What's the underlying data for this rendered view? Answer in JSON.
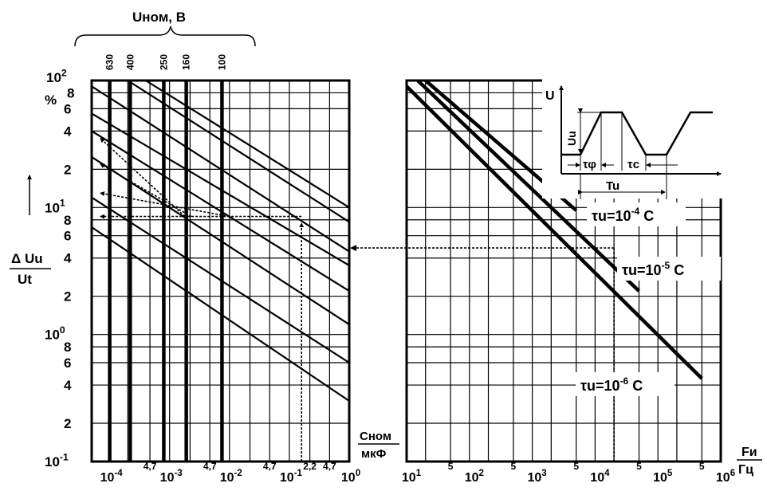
{
  "header": {
    "voltage_axis_title": "Uном, В"
  },
  "left_axis": {
    "ratio_numerator": "Δ Uu",
    "ratio_denominator": "Ut",
    "percent_sign": "%",
    "decade_labels": [
      {
        "base": "10",
        "exp": "2",
        "value": 100
      },
      {
        "base": "10",
        "exp": "1",
        "value": 10
      },
      {
        "base": "10",
        "exp": "0",
        "value": 1
      },
      {
        "base": "10",
        "exp": "-1",
        "value": 0.1
      }
    ],
    "minor_labels": [
      {
        "text": "8",
        "value": 80
      },
      {
        "text": "6",
        "value": 60
      },
      {
        "text": "4",
        "value": 40
      },
      {
        "text": "2",
        "value": 20
      },
      {
        "text": "8",
        "value": 8
      },
      {
        "text": "6",
        "value": 6
      },
      {
        "text": "4",
        "value": 4
      },
      {
        "text": "2",
        "value": 2
      },
      {
        "text": "8",
        "value": 0.8
      },
      {
        "text": "6",
        "value": 0.6
      },
      {
        "text": "4",
        "value": 0.4
      },
      {
        "text": "2",
        "value": 0.2
      }
    ]
  },
  "cap_axis": {
    "unit_top": "Сном",
    "unit_bottom": "мкФ",
    "decade_labels": [
      {
        "base": "10",
        "exp": "-4",
        "value": 0.0001
      },
      {
        "base": "10",
        "exp": "-3",
        "value": 0.001
      },
      {
        "base": "10",
        "exp": "-2",
        "value": 0.01
      },
      {
        "base": "10",
        "exp": "-1",
        "value": 0.1
      },
      {
        "base": "10",
        "exp": "0",
        "value": 1
      }
    ],
    "minor_labels": [
      {
        "text": "4,7",
        "value": 0.00047
      },
      {
        "text": "4,7",
        "value": 0.0047
      },
      {
        "text": "4,7",
        "value": 0.047
      },
      {
        "text": "2,2",
        "value": 0.22
      },
      {
        "text": "4,7",
        "value": 0.47
      }
    ]
  },
  "freq_axis": {
    "unit_top": "Fи",
    "unit_bottom": "Гц",
    "decade_labels": [
      {
        "base": "10",
        "exp": "1",
        "value": 10
      },
      {
        "base": "10",
        "exp": "2",
        "value": 100
      },
      {
        "base": "10",
        "exp": "3",
        "value": 1000
      },
      {
        "base": "10",
        "exp": "4",
        "value": 10000
      },
      {
        "base": "10",
        "exp": "5",
        "value": 100000
      },
      {
        "base": "10",
        "exp": "6",
        "value": 1000000
      }
    ],
    "minor_labels": [
      {
        "text": "5",
        "value": 50
      },
      {
        "text": "5",
        "value": 500
      },
      {
        "text": "5",
        "value": 5000
      },
      {
        "text": "5",
        "value": 50000
      },
      {
        "text": "5",
        "value": 500000
      }
    ]
  },
  "chart_data": [
    {
      "type": "line",
      "x_scale": "log",
      "y_scale": "log",
      "xlabel": "Сном, мкФ",
      "ylabel": "Δ Uu / Ut, %",
      "xlim": [
        5e-05,
        1
      ],
      "ylim": [
        0.1,
        100
      ],
      "grid": true,
      "voltage_lines": [
        {
          "label": "630",
          "x": 0.0001
        },
        {
          "label": "400",
          "x": 0.00022
        },
        {
          "label": "250",
          "x": 0.0008
        },
        {
          "label": "160",
          "x": 0.0019
        },
        {
          "label": "100",
          "x": 0.0075
        }
      ],
      "series": [
        {
          "points": [
            [
              0.0004,
              100
            ],
            [
              1,
              10
            ]
          ]
        },
        {
          "points": [
            [
              0.0002,
              100
            ],
            [
              1,
              7.7
            ]
          ]
        },
        {
          "points": [
            [
              5e-05,
              90
            ],
            [
              1,
              4.5
            ]
          ]
        },
        {
          "points": [
            [
              5e-05,
              55
            ],
            [
              1,
              3.5
            ]
          ]
        },
        {
          "points": [
            [
              5e-05,
              40
            ],
            [
              1,
              2.2
            ]
          ]
        },
        {
          "points": [
            [
              5e-05,
              25
            ],
            [
              1,
              1.2
            ]
          ]
        },
        {
          "points": [
            [
              5e-05,
              12
            ],
            [
              1,
              0.6
            ]
          ]
        },
        {
          "points": [
            [
              5e-05,
              7
            ],
            [
              1,
              0.3
            ]
          ]
        }
      ],
      "example_path": [
        {
          "points": [
            [
              0.16,
              7.5
            ],
            [
              0.16,
              0.1
            ]
          ]
        },
        {
          "points": [
            [
              7e-05,
              8.5
            ],
            [
              0.16,
              8.5
            ]
          ]
        },
        {
          "points": [
            [
              7e-05,
              35
            ],
            [
              0.0018,
              8.5
            ]
          ]
        },
        {
          "points": [
            [
              7e-05,
              22
            ],
            [
              0.0023,
              8.5
            ]
          ]
        },
        {
          "points": [
            [
              7e-05,
              13
            ],
            [
              0.01,
              8.5
            ]
          ]
        }
      ]
    },
    {
      "type": "line",
      "x_scale": "log",
      "y_scale": "log",
      "xlabel": "Fи, Гц",
      "xlim": [
        10,
        1000000
      ],
      "ylim": [
        0.1,
        100
      ],
      "grid": true,
      "series": [
        {
          "name": "τu=10⁻⁴ С",
          "label_parts": [
            "τu=10",
            "-4",
            "С"
          ],
          "points": [
            [
              20,
              100
            ],
            [
              5000,
              9.5
            ]
          ]
        },
        {
          "name": "τu=10⁻⁵ С",
          "label_parts": [
            "τu=10",
            "-5",
            "С"
          ],
          "points": [
            [
              15,
              100
            ],
            [
              50000,
              2.2
            ]
          ]
        },
        {
          "name": "τu=10⁻⁶ С",
          "label_parts": [
            "τu=10",
            "-6",
            "С"
          ],
          "points": [
            [
              10,
              90
            ],
            [
              500000,
              0.45
            ]
          ]
        }
      ],
      "example_path": [
        {
          "points": [
            [
              20000,
              0.1
            ],
            [
              20000,
              4.8
            ]
          ]
        },
        {
          "points": [
            [
              20000,
              4.8
            ],
            [
              1,
              4.8
            ]
          ]
        }
      ]
    }
  ],
  "inset": {
    "y_label": "U",
    "amplitude_label": "Uu",
    "rise_label": "τφ",
    "pulse_label": "τс",
    "period_label": "Tu"
  }
}
